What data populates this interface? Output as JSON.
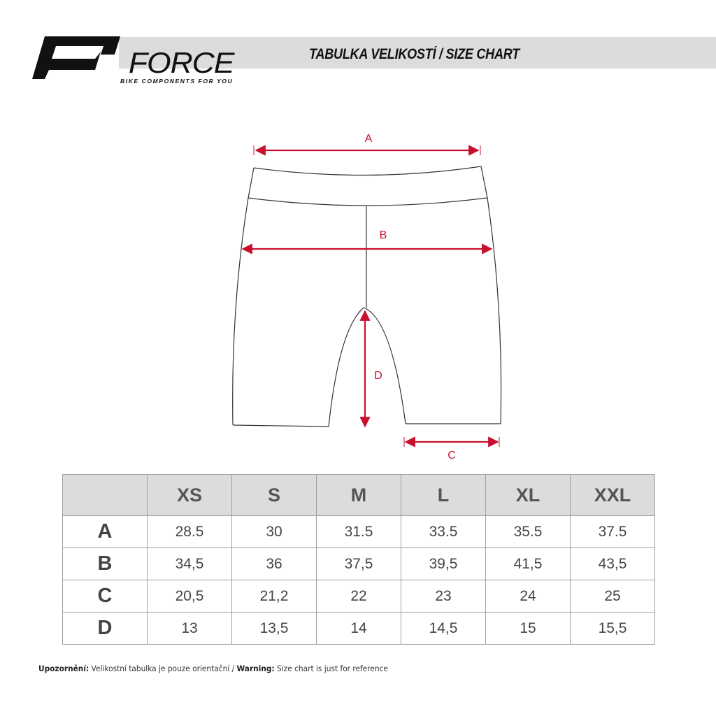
{
  "header": {
    "brand": "FORCE",
    "tagline": "BIKE COMPONENTS FOR YOU",
    "title": "TABULKA VELIKOSTÍ / SIZE CHART"
  },
  "diagram": {
    "labels": {
      "a": "A",
      "b": "B",
      "c": "C",
      "d": "D"
    },
    "colors": {
      "outline": "#333333",
      "measure": "#c8102e"
    }
  },
  "table": {
    "columns": [
      "",
      "XS",
      "S",
      "M",
      "L",
      "XL",
      "XXL"
    ],
    "rows": [
      {
        "label": "A",
        "values": [
          "28.5",
          "30",
          "31.5",
          "33.5",
          "35.5",
          "37.5"
        ]
      },
      {
        "label": "B",
        "values": [
          "34,5",
          "36",
          "37,5",
          "39,5",
          "41,5",
          "43,5"
        ]
      },
      {
        "label": "C",
        "values": [
          "20,5",
          "21,2",
          "22",
          "23",
          "24",
          "25"
        ]
      },
      {
        "label": "D",
        "values": [
          "13",
          "13,5",
          "14",
          "14,5",
          "15",
          "15,5"
        ]
      }
    ]
  },
  "footer": {
    "warning_cz_label": "Upozornění:",
    "warning_cz_text": " Velikostní tabulka je pouze orientační / ",
    "warning_en_label": "Warning:",
    "warning_en_text": " Size chart is just for reference"
  }
}
